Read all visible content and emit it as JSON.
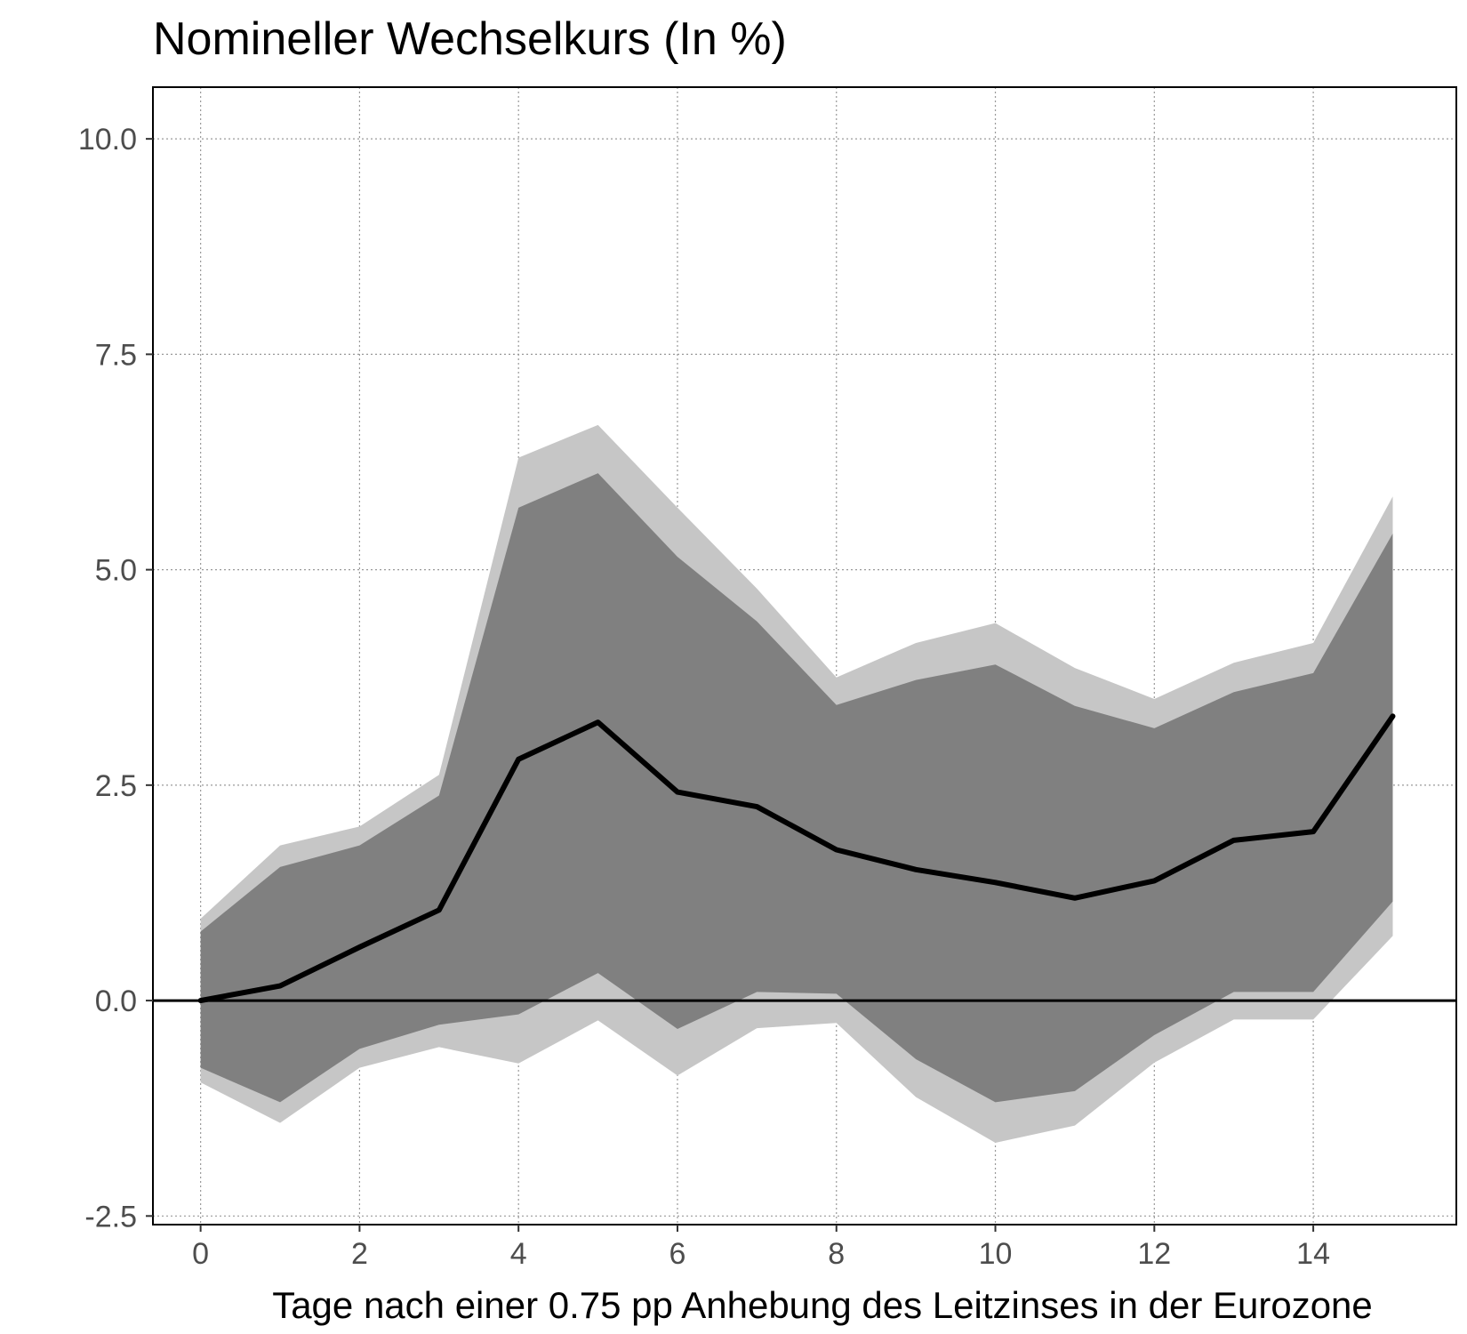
{
  "chart_data": {
    "type": "area",
    "title": "Nomineller Wechselkurs (In %)",
    "xlabel": "Tage nach einer 0.75 pp Anhebung des Leitzinses in der Eurozone",
    "ylabel": "",
    "xlim": [
      -0.6,
      15.8
    ],
    "ylim": [
      -2.6,
      10.6
    ],
    "x_ticks": [
      0,
      2,
      4,
      6,
      8,
      10,
      12,
      14
    ],
    "x_tick_labels": [
      "0",
      "2",
      "4",
      "6",
      "8",
      "10",
      "12",
      "14"
    ],
    "y_ticks": [
      -2.5,
      0,
      2.5,
      5,
      7.5,
      10
    ],
    "y_tick_labels": [
      "-2.5",
      "0.0",
      "2.5",
      "5.0",
      "7.5",
      "10.0"
    ],
    "grid": true,
    "reference_line_y": 0,
    "x": [
      0,
      1,
      2,
      3,
      4,
      5,
      6,
      7,
      8,
      9,
      10,
      11,
      12,
      13,
      14,
      15
    ],
    "series": [
      {
        "values": [
          0.0,
          0.17,
          0.62,
          1.05,
          2.8,
          3.23,
          2.42,
          2.25,
          1.75,
          1.52,
          1.37,
          1.19,
          1.39,
          1.86,
          1.96,
          3.3
        ]
      }
    ],
    "bands": [
      {
        "level": "outer",
        "lower": [
          -0.95,
          -1.42,
          -0.78,
          -0.54,
          -0.73,
          -0.23,
          -0.87,
          -0.32,
          -0.26,
          -1.12,
          -1.65,
          -1.45,
          -0.72,
          -0.22,
          -0.22,
          0.75
        ],
        "upper": [
          0.95,
          1.8,
          2.02,
          2.62,
          6.3,
          6.68,
          5.72,
          4.78,
          3.75,
          4.15,
          4.38,
          3.86,
          3.5,
          3.92,
          4.15,
          5.85
        ]
      },
      {
        "level": "inner",
        "lower": [
          -0.78,
          -1.18,
          -0.56,
          -0.28,
          -0.16,
          0.32,
          -0.33,
          0.1,
          0.08,
          -0.68,
          -1.18,
          -1.05,
          -0.4,
          0.1,
          0.1,
          1.15
        ],
        "upper": [
          0.8,
          1.55,
          1.8,
          2.38,
          5.72,
          6.12,
          5.15,
          4.4,
          3.43,
          3.72,
          3.9,
          3.42,
          3.16,
          3.58,
          3.8,
          5.42
        ]
      }
    ],
    "colors": {
      "outer_band": "#c6c6c6",
      "inner_band": "#808080",
      "line": "#000000",
      "grid": "#999999"
    }
  }
}
